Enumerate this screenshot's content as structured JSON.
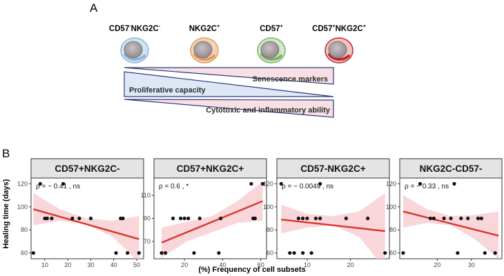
{
  "panel_a": {
    "label": "A",
    "cells": [
      {
        "name_main": "CD57",
        "name_sup1": "-",
        "name_mid": "NKG2C",
        "name_sup2": "-",
        "fill": "#cfe3f2",
        "ring": "#8fb6d8"
      },
      {
        "name_main": "NKG2C",
        "name_sup1": "+",
        "name_mid": "",
        "name_sup2": "",
        "fill": "#f6d2b4",
        "ring": "#e39a5e"
      },
      {
        "name_main": "CD57",
        "name_sup1": "+",
        "name_mid": "",
        "name_sup2": "",
        "fill": "#d3e8c6",
        "ring": "#7fb069"
      },
      {
        "name_main": "CD57",
        "name_sup1": "+",
        "name_mid": "NKG2C",
        "name_sup2": "+",
        "fill": "#f3c3c3",
        "ring": "#c0282b"
      }
    ],
    "gradients": {
      "senescence": "Senescence markers",
      "proliferative": "Proliferative capacity",
      "cytotoxic": "Cytotoxic and inflammatory ability"
    },
    "colors": {
      "pink": "#f8dfe4",
      "blue": "#dde7f5",
      "edge": "#2b3a7a"
    }
  },
  "panel_b": {
    "label": "B",
    "y_title": "Healing time (days)",
    "x_title": "(%) Frequency of cell subsets"
  },
  "chart_data": [
    {
      "type": "scatter",
      "title": "CD57+NKG2C-",
      "annotation": "ρ = − 0.41 ,  ns",
      "xlim": [
        4,
        53
      ],
      "ylim": [
        55,
        125
      ],
      "xticks": [
        10,
        20,
        30,
        40,
        50
      ],
      "yticks": [
        60,
        80,
        100,
        120
      ],
      "points": [
        [
          5,
          60
        ],
        [
          8,
          120
        ],
        [
          10,
          90
        ],
        [
          11,
          90
        ],
        [
          13,
          90
        ],
        [
          18,
          120
        ],
        [
          22,
          90
        ],
        [
          25,
          90
        ],
        [
          30,
          90
        ],
        [
          41,
          60
        ],
        [
          43,
          90
        ],
        [
          44,
          90
        ],
        [
          46,
          60
        ],
        [
          51,
          60
        ]
      ],
      "fit": {
        "x": [
          5,
          51
        ],
        "y": [
          98,
          72
        ]
      },
      "band": {
        "upper": [
          112,
          98,
          90,
          88,
          92
        ],
        "lower": [
          84,
          88,
          85,
          74,
          52
        ]
      }
    },
    {
      "type": "scatter",
      "title": "CD57+NKG2C+",
      "annotation": "ρ = 0.6 ,  *",
      "xlim": [
        4,
        63
      ],
      "ylim": [
        55,
        125
      ],
      "xticks": [
        20,
        40,
        60
      ],
      "yticks": [
        70,
        90,
        110
      ],
      "points": [
        [
          8,
          60
        ],
        [
          10,
          60
        ],
        [
          14,
          90
        ],
        [
          18,
          90
        ],
        [
          20,
          90
        ],
        [
          22,
          90
        ],
        [
          25,
          60
        ],
        [
          28,
          90
        ],
        [
          38,
          60
        ],
        [
          39,
          90
        ],
        [
          55,
          120
        ],
        [
          56,
          90
        ],
        [
          57,
          90
        ],
        [
          61,
          120
        ]
      ],
      "fit": {
        "x": [
          8,
          61
        ],
        "y": [
          69,
          105
        ]
      },
      "band": {
        "upper": [
          82,
          87,
          92,
          105,
          122
        ],
        "lower": [
          56,
          70,
          78,
          86,
          88
        ]
      }
    },
    {
      "type": "scatter",
      "title": "CD57-NKG2C+",
      "annotation": "ρ = − 0.0049 ,  ns",
      "xlim": [
        3,
        29
      ],
      "ylim": [
        55,
        125
      ],
      "xticks": [
        10,
        20
      ],
      "yticks": [
        60,
        80,
        100,
        120
      ],
      "points": [
        [
          4,
          120
        ],
        [
          6,
          60
        ],
        [
          7,
          60
        ],
        [
          8,
          90
        ],
        [
          9,
          90
        ],
        [
          9,
          60
        ],
        [
          10,
          90
        ],
        [
          11,
          60
        ],
        [
          12,
          90
        ],
        [
          13,
          90
        ],
        [
          13,
          120
        ],
        [
          19,
          90
        ],
        [
          24,
          90
        ],
        [
          28,
          60
        ]
      ],
      "fit": {
        "x": [
          4,
          28
        ],
        "y": [
          89,
          79
        ]
      },
      "band": {
        "upper": [
          102,
          94,
          92,
          96,
          112
        ],
        "lower": [
          77,
          82,
          84,
          74,
          46
        ]
      }
    },
    {
      "type": "scatter",
      "title": "NKG2C-CD57-",
      "annotation": "ρ = − 0.33 ,  ns",
      "xlim": [
        9,
        39
      ],
      "ylim": [
        55,
        125
      ],
      "xticks": [
        20,
        30
      ],
      "yticks": [
        60,
        80,
        100,
        120
      ],
      "points": [
        [
          10,
          60
        ],
        [
          15,
          120
        ],
        [
          18,
          90
        ],
        [
          19,
          90
        ],
        [
          22,
          90
        ],
        [
          24,
          90
        ],
        [
          25,
          120
        ],
        [
          26,
          60
        ],
        [
          27,
          90
        ],
        [
          29,
          90
        ],
        [
          32,
          90
        ],
        [
          33,
          90
        ],
        [
          34,
          60
        ],
        [
          37,
          60
        ]
      ],
      "fit": {
        "x": [
          10,
          38
        ],
        "y": [
          96,
          75
        ]
      },
      "band": {
        "upper": [
          110,
          98,
          92,
          93,
          96
        ],
        "lower": [
          82,
          86,
          84,
          72,
          55
        ]
      }
    }
  ]
}
